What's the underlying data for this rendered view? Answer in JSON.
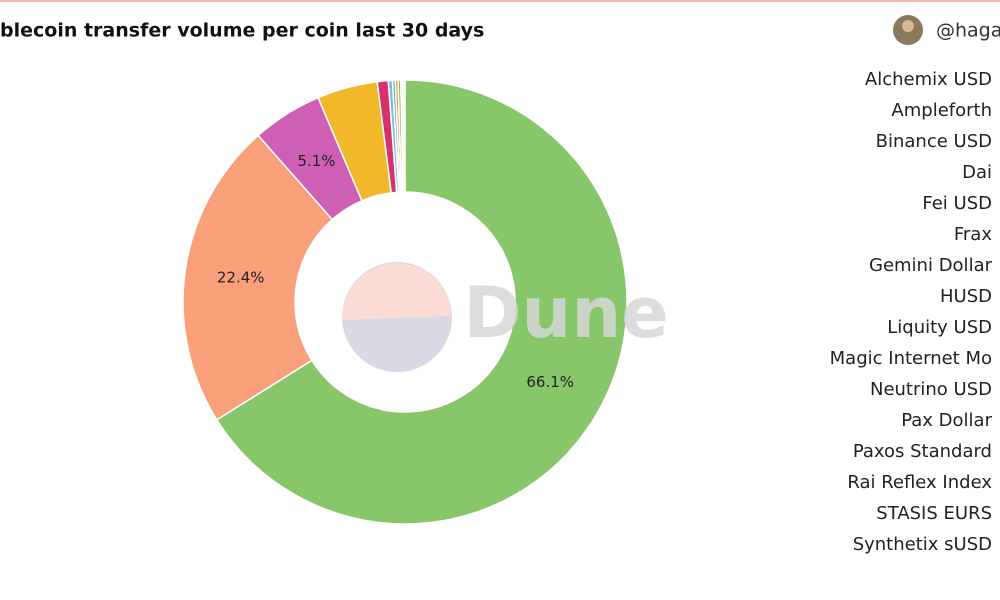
{
  "chart_data": {
    "type": "pie",
    "title": "blecoin transfer volume per coin last 30 days",
    "author": "@haga",
    "watermark": "Dune",
    "values": [
      66.1,
      22.4,
      5.1,
      4.4,
      0.8,
      0.3,
      0.2,
      0.2,
      0.2,
      0.1,
      0.1,
      0.1
    ],
    "value_labels": [
      "66.1%",
      "22.4%",
      "5.1%",
      null,
      null,
      null,
      null,
      null,
      null,
      null,
      null,
      null
    ],
    "colors": [
      "#88c66a",
      "#f9a07a",
      "#cf5fb4",
      "#f1b82a",
      "#d6336c",
      "#7fb8e8",
      "#4fb3b0",
      "#f08c3c",
      "#8bc34a",
      "#9c6ad6",
      "#aaaaaa",
      "#f48fb1"
    ],
    "legend": [
      "Alchemix USD",
      "Ampleforth",
      "Binance USD",
      "Dai",
      "Fei USD",
      "Frax",
      "Gemini Dollar",
      "HUSD",
      "Liquity USD",
      "Magic Internet Mo",
      "Neutrino USD",
      "Pax Dollar",
      "Paxos Standard",
      "Rai Reflex Index",
      "STASIS EURS",
      "Synthetix sUSD"
    ]
  }
}
